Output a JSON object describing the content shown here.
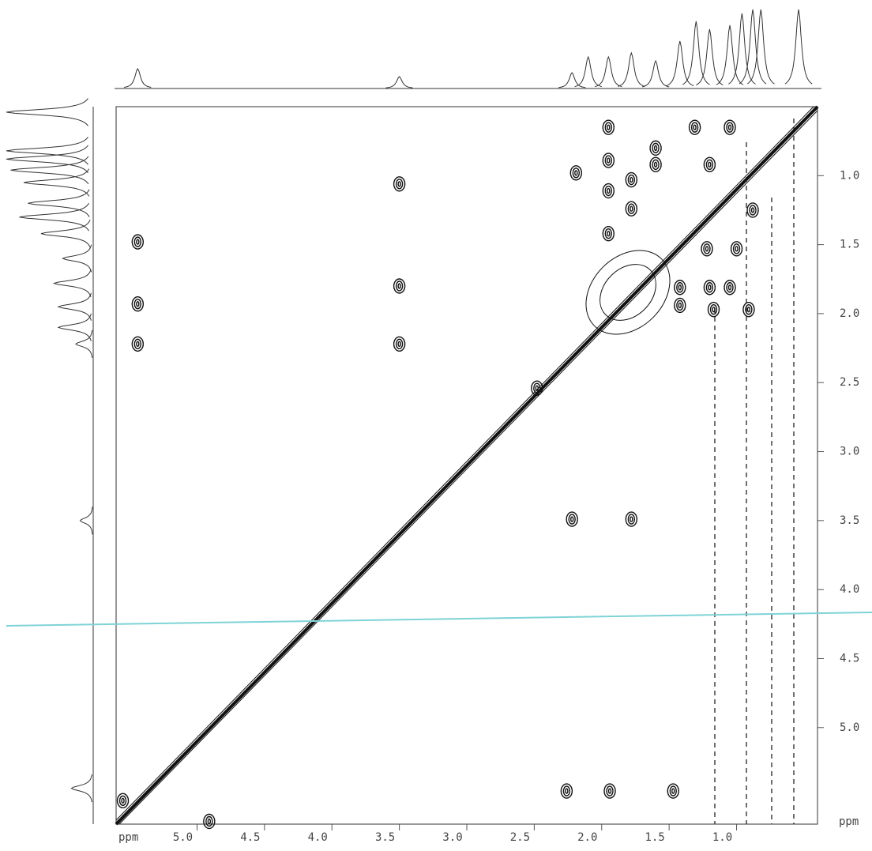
{
  "chart_data": {
    "type": "contour",
    "x_label": "ppm",
    "y_label": "ppm",
    "xlim": [
      5.6,
      0.4
    ],
    "ylim": [
      0.5,
      5.7
    ],
    "xticks": [
      {
        "value": 5,
        "label": "5.0"
      },
      4.5,
      {
        "value": 4,
        "label": "4.0"
      },
      3.5,
      {
        "value": 3,
        "label": "3.0"
      },
      2.5,
      {
        "value": 2,
        "label": "2.0"
      },
      1.5,
      {
        "value": 1,
        "label": "1.0"
      }
    ],
    "yticks": [
      {
        "value": 1,
        "label": "1.0"
      },
      1.5,
      {
        "value": 2,
        "label": "2.0"
      },
      2.5,
      {
        "value": 3,
        "label": "3.0"
      },
      3.5,
      {
        "value": 4,
        "label": "4.0"
      },
      4.5,
      {
        "value": 5,
        "label": "5.0"
      }
    ],
    "color": "#111111",
    "x": [
      5.44,
      5.44,
      5.44,
      3.5,
      3.5,
      3.5,
      2.22,
      1.78,
      5.55,
      4.91,
      2.26,
      1.94,
      1.47,
      1.95,
      1.95,
      1.95,
      1.95,
      1.78,
      1.78,
      1.6,
      1.6,
      2.19,
      1.31,
      1.05,
      1.42,
      1.42,
      1.2,
      1.05,
      1.17,
      0.91,
      1.2,
      1.0,
      1.22,
      0.88,
      2.48
    ],
    "values": [
      1.48,
      1.93,
      2.22,
      1.06,
      1.8,
      2.22,
      3.49,
      3.49,
      5.53,
      5.68,
      5.46,
      5.46,
      5.46,
      0.65,
      0.89,
      1.11,
      1.42,
      1.03,
      1.24,
      0.8,
      0.92,
      0.98,
      0.65,
      0.65,
      1.81,
      1.94,
      1.81,
      1.81,
      1.97,
      1.97,
      0.92,
      1.53,
      1.53,
      1.25,
      2.54
    ],
    "projection": {
      "x": [
        5.44,
        3.5,
        2.22,
        2.1,
        1.95,
        1.78,
        1.6,
        1.42,
        1.3,
        1.2,
        1.05,
        0.96,
        0.88,
        0.82,
        0.54
      ],
      "values": [
        25,
        15,
        20,
        40,
        40,
        45,
        35,
        60,
        85,
        75,
        80,
        95,
        100,
        100,
        100
      ]
    }
  }
}
